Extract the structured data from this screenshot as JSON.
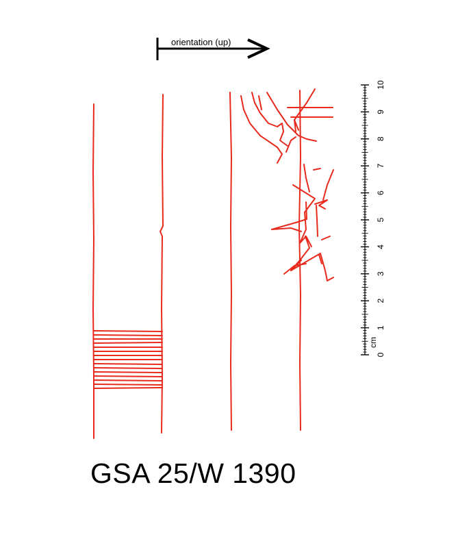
{
  "orientation": {
    "label": "orientation (up)"
  },
  "scale": {
    "unit": "cm",
    "numbers": [
      "0",
      "1",
      "2",
      "3",
      "4",
      "5",
      "6",
      "7",
      "8",
      "9",
      "10"
    ]
  },
  "caption": "GSA 25/W 1390",
  "colors": {
    "lines": "#e8291c",
    "ink": "#000000"
  }
}
